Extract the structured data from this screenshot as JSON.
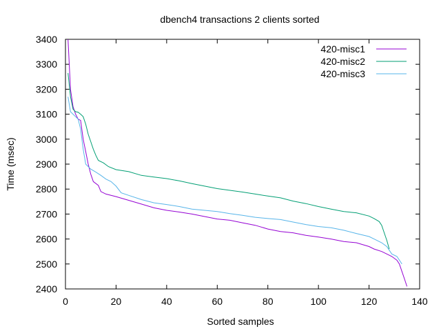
{
  "chart_data": {
    "type": "line",
    "title": "dbench4 transactions 2 clients sorted",
    "xlabel": "Sorted samples",
    "ylabel": "Time (msec)",
    "xlim": [
      0,
      140
    ],
    "ylim": [
      2400,
      3400
    ],
    "xticks": [
      0,
      20,
      40,
      60,
      80,
      100,
      120,
      140
    ],
    "yticks": [
      2400,
      2500,
      2600,
      2700,
      2800,
      2900,
      3000,
      3100,
      3200,
      3300,
      3400
    ],
    "grid": false,
    "legend_position": "top-right",
    "series": [
      {
        "name": "420-misc1",
        "color": "#9400d3",
        "points": [
          [
            1,
            3400
          ],
          [
            2,
            3200
          ],
          [
            3,
            3130
          ],
          [
            4,
            3100
          ],
          [
            5,
            3080
          ],
          [
            6,
            3075
          ],
          [
            7,
            3000
          ],
          [
            8,
            2950
          ],
          [
            9,
            2900
          ],
          [
            10,
            2860
          ],
          [
            11,
            2830
          ],
          [
            13,
            2815
          ],
          [
            14,
            2790
          ],
          [
            16,
            2780
          ],
          [
            20,
            2770
          ],
          [
            25,
            2755
          ],
          [
            30,
            2740
          ],
          [
            35,
            2725
          ],
          [
            40,
            2715
          ],
          [
            45,
            2708
          ],
          [
            50,
            2700
          ],
          [
            55,
            2690
          ],
          [
            60,
            2680
          ],
          [
            65,
            2675
          ],
          [
            70,
            2665
          ],
          [
            75,
            2655
          ],
          [
            80,
            2640
          ],
          [
            85,
            2630
          ],
          [
            90,
            2625
          ],
          [
            95,
            2615
          ],
          [
            100,
            2608
          ],
          [
            105,
            2600
          ],
          [
            110,
            2590
          ],
          [
            115,
            2585
          ],
          [
            120,
            2570
          ],
          [
            122,
            2560
          ],
          [
            125,
            2550
          ],
          [
            127,
            2540
          ],
          [
            129,
            2530
          ],
          [
            131,
            2515
          ],
          [
            132,
            2500
          ],
          [
            133,
            2470
          ],
          [
            134,
            2440
          ],
          [
            135,
            2410
          ]
        ]
      },
      {
        "name": "420-misc2",
        "color": "#009e73",
        "points": [
          [
            1,
            3265
          ],
          [
            2,
            3170
          ],
          [
            3,
            3120
          ],
          [
            4,
            3110
          ],
          [
            5,
            3108
          ],
          [
            6,
            3100
          ],
          [
            7,
            3090
          ],
          [
            8,
            3060
          ],
          [
            9,
            3020
          ],
          [
            10,
            2990
          ],
          [
            11,
            2960
          ],
          [
            12,
            2935
          ],
          [
            13,
            2915
          ],
          [
            15,
            2905
          ],
          [
            17,
            2890
          ],
          [
            20,
            2878
          ],
          [
            25,
            2870
          ],
          [
            30,
            2855
          ],
          [
            35,
            2848
          ],
          [
            40,
            2842
          ],
          [
            45,
            2833
          ],
          [
            50,
            2822
          ],
          [
            55,
            2812
          ],
          [
            60,
            2802
          ],
          [
            65,
            2795
          ],
          [
            70,
            2788
          ],
          [
            75,
            2780
          ],
          [
            80,
            2772
          ],
          [
            85,
            2765
          ],
          [
            90,
            2752
          ],
          [
            95,
            2742
          ],
          [
            100,
            2730
          ],
          [
            105,
            2720
          ],
          [
            110,
            2710
          ],
          [
            115,
            2705
          ],
          [
            120,
            2692
          ],
          [
            122,
            2682
          ],
          [
            124,
            2670
          ],
          [
            125,
            2655
          ],
          [
            126,
            2625
          ],
          [
            127,
            2595
          ],
          [
            128,
            2560
          ]
        ]
      },
      {
        "name": "420-misc3",
        "color": "#56b4e9",
        "points": [
          [
            1,
            3170
          ],
          [
            2,
            3110
          ],
          [
            3,
            3100
          ],
          [
            4,
            3090
          ],
          [
            5,
            3080
          ],
          [
            6,
            3040
          ],
          [
            7,
            2960
          ],
          [
            8,
            2900
          ],
          [
            10,
            2880
          ],
          [
            12,
            2868
          ],
          [
            14,
            2855
          ],
          [
            16,
            2840
          ],
          [
            18,
            2830
          ],
          [
            20,
            2812
          ],
          [
            22,
            2785
          ],
          [
            25,
            2775
          ],
          [
            30,
            2758
          ],
          [
            35,
            2745
          ],
          [
            40,
            2738
          ],
          [
            45,
            2730
          ],
          [
            50,
            2720
          ],
          [
            55,
            2715
          ],
          [
            60,
            2710
          ],
          [
            65,
            2702
          ],
          [
            70,
            2695
          ],
          [
            75,
            2687
          ],
          [
            80,
            2682
          ],
          [
            85,
            2678
          ],
          [
            90,
            2668
          ],
          [
            95,
            2658
          ],
          [
            100,
            2650
          ],
          [
            105,
            2645
          ],
          [
            110,
            2635
          ],
          [
            115,
            2622
          ],
          [
            120,
            2610
          ],
          [
            122,
            2600
          ],
          [
            125,
            2585
          ],
          [
            127,
            2570
          ],
          [
            129,
            2540
          ],
          [
            131,
            2530
          ],
          [
            133,
            2500
          ]
        ]
      }
    ]
  }
}
